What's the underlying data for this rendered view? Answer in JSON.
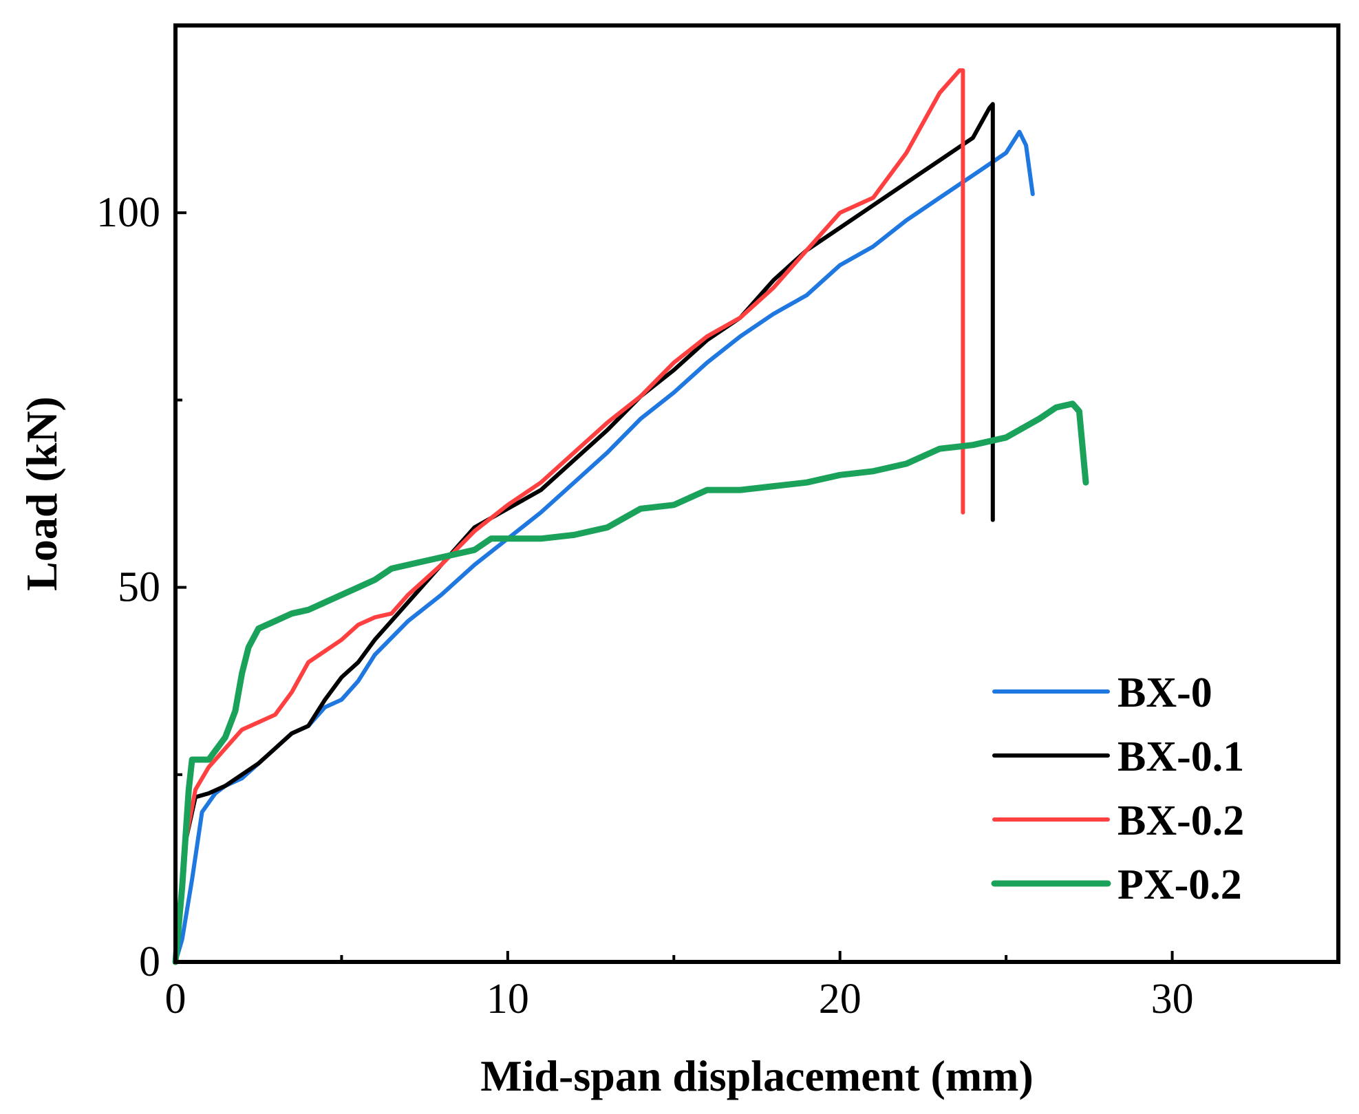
{
  "chart_data": {
    "type": "line",
    "title": "",
    "xlabel": "Mid-span displacement (mm)",
    "ylabel": "Load (kN)",
    "xlim": [
      0,
      35
    ],
    "ylim": [
      0,
      125
    ],
    "x_ticks": [
      0,
      10,
      20,
      30
    ],
    "x_tick_labels": [
      "0",
      "10",
      "20",
      "30"
    ],
    "x_minor_ticks": [
      5,
      15,
      25
    ],
    "y_ticks": [
      0,
      50,
      100
    ],
    "y_tick_labels": [
      "0",
      "50",
      "100"
    ],
    "y_minor_ticks": [
      25,
      75
    ],
    "grid": false,
    "legend_position": "bottom-right",
    "series": [
      {
        "name": "BX-0",
        "color": "#1f77e0",
        "points": [
          [
            0,
            0
          ],
          [
            0.2,
            3
          ],
          [
            0.5,
            11
          ],
          [
            0.8,
            20
          ],
          [
            1.2,
            22.5
          ],
          [
            1.5,
            23.5
          ],
          [
            2,
            24.5
          ],
          [
            2.5,
            26.5
          ],
          [
            3,
            28.5
          ],
          [
            3.5,
            30.5
          ],
          [
            4,
            31.5
          ],
          [
            4.5,
            34
          ],
          [
            5,
            35
          ],
          [
            5.5,
            37.5
          ],
          [
            6,
            41
          ],
          [
            7,
            45.5
          ],
          [
            8,
            49
          ],
          [
            9,
            53
          ],
          [
            10,
            56.5
          ],
          [
            11,
            60
          ],
          [
            12,
            64
          ],
          [
            13,
            68
          ],
          [
            14,
            72.5
          ],
          [
            15,
            76
          ],
          [
            16,
            80
          ],
          [
            17,
            83.5
          ],
          [
            18,
            86.5
          ],
          [
            19,
            89
          ],
          [
            20,
            93
          ],
          [
            21,
            95.5
          ],
          [
            22,
            99
          ],
          [
            23,
            102
          ],
          [
            24,
            105
          ],
          [
            25,
            108
          ],
          [
            25.4,
            110.8
          ],
          [
            25.6,
            109
          ],
          [
            25.8,
            102.5
          ]
        ]
      },
      {
        "name": "BX-0.1",
        "color": "#000000",
        "points": [
          [
            0,
            0
          ],
          [
            0.3,
            16
          ],
          [
            0.6,
            22
          ],
          [
            1,
            22.5
          ],
          [
            1.5,
            23.5
          ],
          [
            2,
            25
          ],
          [
            2.5,
            26.5
          ],
          [
            3,
            28.5
          ],
          [
            3.5,
            30.5
          ],
          [
            4,
            31.5
          ],
          [
            4.5,
            35
          ],
          [
            5,
            38
          ],
          [
            5.5,
            40
          ],
          [
            6,
            43
          ],
          [
            7,
            48
          ],
          [
            8,
            53
          ],
          [
            9,
            58
          ],
          [
            10,
            60.5
          ],
          [
            11,
            63
          ],
          [
            12,
            67
          ],
          [
            13,
            71
          ],
          [
            14,
            75.5
          ],
          [
            15,
            79
          ],
          [
            16,
            83
          ],
          [
            17,
            86
          ],
          [
            18,
            91
          ],
          [
            19,
            95
          ],
          [
            20,
            98
          ],
          [
            21,
            101
          ],
          [
            22,
            104
          ],
          [
            23,
            107
          ],
          [
            24,
            110
          ],
          [
            24.5,
            114
          ],
          [
            24.6,
            114.5
          ],
          [
            24.6,
            59
          ]
        ]
      },
      {
        "name": "BX-0.2",
        "color": "#ff4040",
        "points": [
          [
            0,
            0
          ],
          [
            0.3,
            16
          ],
          [
            0.6,
            23
          ],
          [
            1,
            26
          ],
          [
            1.5,
            28.5
          ],
          [
            2,
            31
          ],
          [
            3,
            33
          ],
          [
            3.5,
            36
          ],
          [
            4,
            40
          ],
          [
            4.5,
            41.5
          ],
          [
            5,
            43
          ],
          [
            5.5,
            45
          ],
          [
            6,
            46
          ],
          [
            6.5,
            46.5
          ],
          [
            7,
            49
          ],
          [
            8,
            53
          ],
          [
            9,
            57.5
          ],
          [
            10,
            61
          ],
          [
            11,
            64
          ],
          [
            12,
            68
          ],
          [
            12.5,
            70
          ],
          [
            13,
            72
          ],
          [
            14,
            75.5
          ],
          [
            15,
            80
          ],
          [
            16,
            83.5
          ],
          [
            17,
            86
          ],
          [
            18,
            90
          ],
          [
            19,
            95
          ],
          [
            20,
            100
          ],
          [
            21,
            102
          ],
          [
            22,
            108
          ],
          [
            23,
            116
          ],
          [
            23.6,
            119
          ],
          [
            23.7,
            119
          ],
          [
            23.7,
            60
          ]
        ]
      },
      {
        "name": "PX-0.2",
        "color": "#1aa15a",
        "points": [
          [
            0,
            0
          ],
          [
            0.2,
            10
          ],
          [
            0.4,
            23
          ],
          [
            0.5,
            27
          ],
          [
            1,
            27
          ],
          [
            1.5,
            30
          ],
          [
            1.8,
            33.5
          ],
          [
            2,
            38.5
          ],
          [
            2.2,
            42
          ],
          [
            2.5,
            44.5
          ],
          [
            3,
            45.5
          ],
          [
            3.5,
            46.5
          ],
          [
            4,
            47
          ],
          [
            4.5,
            48
          ],
          [
            5,
            49
          ],
          [
            5.5,
            50
          ],
          [
            6,
            51
          ],
          [
            6.5,
            52.5
          ],
          [
            7,
            53
          ],
          [
            8,
            54
          ],
          [
            9,
            55
          ],
          [
            9.5,
            56.5
          ],
          [
            10,
            56.5
          ],
          [
            11,
            56.5
          ],
          [
            12,
            57
          ],
          [
            13,
            58
          ],
          [
            14,
            60.5
          ],
          [
            15,
            61
          ],
          [
            16,
            63
          ],
          [
            17,
            63
          ],
          [
            18,
            63.5
          ],
          [
            19,
            64
          ],
          [
            20,
            65
          ],
          [
            21,
            65.5
          ],
          [
            22,
            66.5
          ],
          [
            23,
            68.5
          ],
          [
            24,
            69
          ],
          [
            25,
            70
          ],
          [
            26,
            72.5
          ],
          [
            26.5,
            74
          ],
          [
            27,
            74.5
          ],
          [
            27.2,
            73.5
          ],
          [
            27.4,
            64
          ]
        ]
      }
    ]
  }
}
